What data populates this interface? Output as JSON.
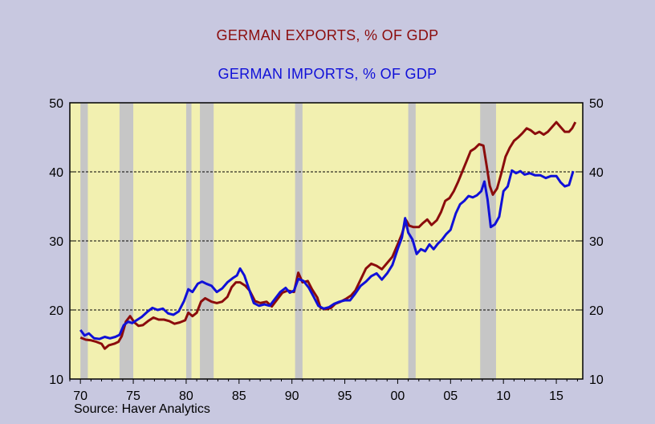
{
  "colors": {
    "background": "#c8c8e0",
    "plot_background": "#f2f0b0",
    "exports": "#8b0c0c",
    "imports": "#1010d8",
    "recession": "#c6c6c6"
  },
  "source": "Source: Haver Analytics",
  "chart_data": {
    "type": "line",
    "title": "GERMAN EXPORTS, % OF GDP",
    "subtitle": "GERMAN IMPORTS, % OF GDP",
    "xlabel": "",
    "ylabel": "",
    "xlim": [
      1969,
      2017.5
    ],
    "ylim": [
      10,
      50
    ],
    "x_ticks": [
      1970,
      1975,
      1980,
      1985,
      1990,
      1995,
      2000,
      2005,
      2010,
      2015
    ],
    "x_tick_labels": [
      "70",
      "75",
      "80",
      "85",
      "90",
      "95",
      "00",
      "05",
      "10",
      "15"
    ],
    "y_ticks": [
      10,
      20,
      30,
      40,
      50
    ],
    "y_tick_labels": [
      "10",
      "20",
      "30",
      "40",
      "50"
    ],
    "grid": "horizontal dashed at 20, 30, 40",
    "right_axis": "mirrors left axis",
    "recession_shading": [
      [
        1970.0,
        1970.7
      ],
      [
        1973.7,
        1975.0
      ],
      [
        1980.0,
        1980.5
      ],
      [
        1981.3,
        1982.6
      ],
      [
        1990.3,
        1991.0
      ],
      [
        2001.0,
        2001.7
      ],
      [
        2007.8,
        2009.3
      ]
    ],
    "series": [
      {
        "name": "GERMAN EXPORTS, % OF GDP",
        "color": "#8b0c0c",
        "points": [
          [
            1970.0,
            16.0
          ],
          [
            1970.5,
            15.7
          ],
          [
            1971.0,
            15.6
          ],
          [
            1971.5,
            15.4
          ],
          [
            1972.0,
            15.1
          ],
          [
            1972.3,
            14.4
          ],
          [
            1972.7,
            14.9
          ],
          [
            1973.2,
            15.1
          ],
          [
            1973.6,
            15.4
          ],
          [
            1973.9,
            16.2
          ],
          [
            1974.3,
            18.3
          ],
          [
            1974.7,
            19.1
          ],
          [
            1975.1,
            18.2
          ],
          [
            1975.5,
            17.7
          ],
          [
            1975.9,
            17.8
          ],
          [
            1976.4,
            18.4
          ],
          [
            1976.9,
            18.9
          ],
          [
            1977.4,
            18.6
          ],
          [
            1977.9,
            18.6
          ],
          [
            1978.4,
            18.4
          ],
          [
            1978.9,
            18.0
          ],
          [
            1979.4,
            18.2
          ],
          [
            1979.9,
            18.5
          ],
          [
            1980.2,
            19.6
          ],
          [
            1980.6,
            19.1
          ],
          [
            1981.0,
            19.6
          ],
          [
            1981.4,
            21.2
          ],
          [
            1981.8,
            21.7
          ],
          [
            1982.4,
            21.2
          ],
          [
            1982.9,
            21.0
          ],
          [
            1983.4,
            21.2
          ],
          [
            1983.9,
            21.9
          ],
          [
            1984.3,
            23.3
          ],
          [
            1984.7,
            24.0
          ],
          [
            1985.1,
            24.0
          ],
          [
            1985.6,
            23.5
          ],
          [
            1986.0,
            22.8
          ],
          [
            1986.5,
            21.3
          ],
          [
            1987.0,
            21.0
          ],
          [
            1987.6,
            21.2
          ],
          [
            1988.1,
            20.5
          ],
          [
            1988.6,
            21.5
          ],
          [
            1989.1,
            22.5
          ],
          [
            1989.6,
            22.8
          ],
          [
            1990.2,
            22.6
          ],
          [
            1990.6,
            25.4
          ],
          [
            1991.0,
            24.0
          ],
          [
            1991.5,
            24.2
          ],
          [
            1991.9,
            23.0
          ],
          [
            1992.4,
            21.8
          ],
          [
            1992.7,
            20.3
          ],
          [
            1993.2,
            20.1
          ],
          [
            1993.7,
            20.3
          ],
          [
            1994.1,
            20.9
          ],
          [
            1994.6,
            21.2
          ],
          [
            1995.1,
            21.6
          ],
          [
            1995.6,
            22.1
          ],
          [
            1996.0,
            22.8
          ],
          [
            1996.5,
            24.4
          ],
          [
            1997.0,
            26.0
          ],
          [
            1997.5,
            26.7
          ],
          [
            1998.0,
            26.4
          ],
          [
            1998.5,
            25.9
          ],
          [
            1999.0,
            26.8
          ],
          [
            1999.5,
            27.7
          ],
          [
            2000.0,
            29.5
          ],
          [
            2000.4,
            31.0
          ],
          [
            2000.8,
            33.0
          ],
          [
            2001.1,
            32.2
          ],
          [
            2001.5,
            32.0
          ],
          [
            2002.0,
            32.0
          ],
          [
            2002.4,
            32.6
          ],
          [
            2002.8,
            33.1
          ],
          [
            2003.2,
            32.3
          ],
          [
            2003.7,
            33.0
          ],
          [
            2004.1,
            34.2
          ],
          [
            2004.5,
            35.8
          ],
          [
            2004.9,
            36.2
          ],
          [
            2005.3,
            37.2
          ],
          [
            2005.7,
            38.5
          ],
          [
            2006.1,
            40.0
          ],
          [
            2006.5,
            41.5
          ],
          [
            2006.9,
            43.0
          ],
          [
            2007.3,
            43.4
          ],
          [
            2007.7,
            44.0
          ],
          [
            2008.1,
            43.8
          ],
          [
            2008.4,
            41.0
          ],
          [
            2008.7,
            38.0
          ],
          [
            2009.0,
            36.7
          ],
          [
            2009.4,
            37.6
          ],
          [
            2009.8,
            39.8
          ],
          [
            2010.2,
            42.2
          ],
          [
            2010.6,
            43.5
          ],
          [
            2011.0,
            44.5
          ],
          [
            2011.4,
            45.0
          ],
          [
            2011.8,
            45.6
          ],
          [
            2012.2,
            46.3
          ],
          [
            2012.6,
            46.0
          ],
          [
            2013.0,
            45.5
          ],
          [
            2013.4,
            45.8
          ],
          [
            2013.8,
            45.4
          ],
          [
            2014.2,
            45.8
          ],
          [
            2014.6,
            46.5
          ],
          [
            2015.0,
            47.2
          ],
          [
            2015.4,
            46.5
          ],
          [
            2015.8,
            45.8
          ],
          [
            2016.2,
            45.8
          ],
          [
            2016.5,
            46.3
          ],
          [
            2016.8,
            47.2
          ]
        ]
      },
      {
        "name": "GERMAN IMPORTS, % OF GDP",
        "color": "#1010d8",
        "points": [
          [
            1970.0,
            17.1
          ],
          [
            1970.4,
            16.3
          ],
          [
            1970.8,
            16.6
          ],
          [
            1971.3,
            15.9
          ],
          [
            1971.8,
            15.8
          ],
          [
            1972.3,
            16.1
          ],
          [
            1972.8,
            15.9
          ],
          [
            1973.3,
            16.1
          ],
          [
            1973.7,
            16.4
          ],
          [
            1974.1,
            17.8
          ],
          [
            1974.5,
            18.3
          ],
          [
            1974.9,
            18.1
          ],
          [
            1975.3,
            18.5
          ],
          [
            1975.8,
            19.0
          ],
          [
            1976.3,
            19.7
          ],
          [
            1976.8,
            20.3
          ],
          [
            1977.3,
            20.0
          ],
          [
            1977.8,
            20.2
          ],
          [
            1978.3,
            19.5
          ],
          [
            1978.8,
            19.3
          ],
          [
            1979.3,
            19.8
          ],
          [
            1979.8,
            21.3
          ],
          [
            1980.2,
            23.0
          ],
          [
            1980.6,
            22.6
          ],
          [
            1981.1,
            23.8
          ],
          [
            1981.5,
            24.1
          ],
          [
            1981.9,
            23.8
          ],
          [
            1982.4,
            23.5
          ],
          [
            1982.9,
            22.6
          ],
          [
            1983.4,
            23.1
          ],
          [
            1983.9,
            24.0
          ],
          [
            1984.4,
            24.6
          ],
          [
            1984.8,
            25.0
          ],
          [
            1985.1,
            26.0
          ],
          [
            1985.5,
            25.0
          ],
          [
            1985.9,
            23.2
          ],
          [
            1986.4,
            21.0
          ],
          [
            1986.9,
            20.6
          ],
          [
            1987.4,
            20.8
          ],
          [
            1987.9,
            20.6
          ],
          [
            1988.4,
            21.6
          ],
          [
            1988.9,
            22.6
          ],
          [
            1989.4,
            23.2
          ],
          [
            1989.8,
            22.5
          ],
          [
            1990.2,
            22.8
          ],
          [
            1990.6,
            24.5
          ],
          [
            1991.1,
            24.2
          ],
          [
            1991.6,
            23.2
          ],
          [
            1992.1,
            21.8
          ],
          [
            1992.5,
            20.6
          ],
          [
            1993.0,
            20.2
          ],
          [
            1993.5,
            20.4
          ],
          [
            1994.0,
            20.9
          ],
          [
            1994.5,
            21.2
          ],
          [
            1995.0,
            21.4
          ],
          [
            1995.5,
            21.4
          ],
          [
            1996.0,
            22.4
          ],
          [
            1996.5,
            23.5
          ],
          [
            1997.0,
            24.1
          ],
          [
            1997.5,
            24.9
          ],
          [
            1998.0,
            25.3
          ],
          [
            1998.5,
            24.4
          ],
          [
            1999.0,
            25.3
          ],
          [
            1999.5,
            26.5
          ],
          [
            2000.0,
            28.8
          ],
          [
            2000.4,
            30.5
          ],
          [
            2000.7,
            33.3
          ],
          [
            2001.0,
            31.2
          ],
          [
            2001.4,
            30.2
          ],
          [
            2001.8,
            28.1
          ],
          [
            2002.2,
            28.8
          ],
          [
            2002.6,
            28.5
          ],
          [
            2003.0,
            29.5
          ],
          [
            2003.4,
            28.8
          ],
          [
            2003.8,
            29.6
          ],
          [
            2004.2,
            30.2
          ],
          [
            2004.6,
            31.0
          ],
          [
            2005.0,
            31.6
          ],
          [
            2005.5,
            34.0
          ],
          [
            2005.9,
            35.3
          ],
          [
            2006.3,
            35.8
          ],
          [
            2006.7,
            36.5
          ],
          [
            2007.1,
            36.3
          ],
          [
            2007.5,
            36.6
          ],
          [
            2007.9,
            37.2
          ],
          [
            2008.2,
            38.6
          ],
          [
            2008.5,
            36.0
          ],
          [
            2008.8,
            32.0
          ],
          [
            2009.2,
            32.4
          ],
          [
            2009.6,
            33.5
          ],
          [
            2010.0,
            37.2
          ],
          [
            2010.4,
            37.9
          ],
          [
            2010.8,
            40.2
          ],
          [
            2011.2,
            39.8
          ],
          [
            2011.6,
            40.1
          ],
          [
            2012.0,
            39.6
          ],
          [
            2012.5,
            39.8
          ],
          [
            2013.0,
            39.5
          ],
          [
            2013.5,
            39.5
          ],
          [
            2014.0,
            39.1
          ],
          [
            2014.5,
            39.4
          ],
          [
            2015.0,
            39.4
          ],
          [
            2015.4,
            38.5
          ],
          [
            2015.8,
            37.9
          ],
          [
            2016.2,
            38.1
          ],
          [
            2016.6,
            40.1
          ]
        ]
      }
    ]
  }
}
